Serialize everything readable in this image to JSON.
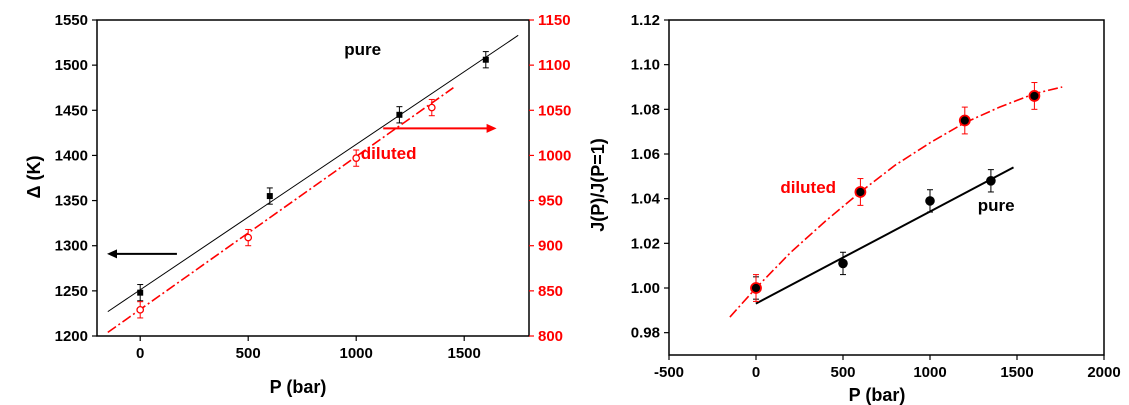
{
  "chart_data": [
    {
      "type": "scatter",
      "xlabel": "P (bar)",
      "ylabel": "Δ (K)",
      "y2label": "",
      "xlim": [
        -200,
        1800
      ],
      "xticks": [
        0,
        500,
        1000,
        1500
      ],
      "ylim": [
        1200,
        1550
      ],
      "yticks": [
        1200,
        1250,
        1300,
        1350,
        1400,
        1450,
        1500,
        1550
      ],
      "y2lim": [
        800,
        1150
      ],
      "y2ticks": [
        800,
        850,
        900,
        950,
        1000,
        1050,
        1100,
        1150
      ],
      "colors": {
        "pure": "#000000",
        "diluted": "#ff0000"
      },
      "series": [
        {
          "name": "pure",
          "axis": "left",
          "marker": "filled-square",
          "x": [
            0,
            600,
            1200,
            1600
          ],
          "y": [
            1248,
            1355,
            1445,
            1506
          ],
          "err": [
            9,
            9,
            9,
            9
          ],
          "fit": {
            "x": [
              -150,
              1750
            ],
            "y": [
              1227,
              1533
            ]
          }
        },
        {
          "name": "diluted",
          "axis": "right",
          "marker": "open-circle",
          "x": [
            0,
            500,
            1000,
            1350
          ],
          "y": [
            829,
            909,
            997,
            1053
          ],
          "err": [
            9,
            9,
            9,
            9
          ],
          "fit": {
            "x": [
              -150,
              1450
            ],
            "y": [
              804,
              1075
            ]
          }
        }
      ],
      "annotations": [
        {
          "text": "pure",
          "x": 1030,
          "y": 1511,
          "color": "#000000"
        },
        {
          "text": "diluted",
          "x": 1150,
          "y": 1396,
          "color": "#ff0000"
        }
      ],
      "arrows": [
        {
          "dir": "left",
          "color": "#000000",
          "x_from": 170,
          "x_to": -250,
          "y": 1291
        },
        {
          "dir": "right",
          "color": "#ff0000",
          "x_from": 1125,
          "x_to": 1650,
          "y": 1030
        }
      ]
    },
    {
      "type": "scatter",
      "xlabel": "P (bar)",
      "ylabel": "J(P)/J(P=1)",
      "xlim": [
        -500,
        2000
      ],
      "xticks": [
        -500,
        0,
        500,
        1000,
        1500,
        2000
      ],
      "ylim": [
        0.97,
        1.12
      ],
      "yticks": [
        0.98,
        1.0,
        1.02,
        1.04,
        1.06,
        1.08,
        1.1,
        1.12
      ],
      "colors": {
        "pure": "#000000",
        "diluted": "#ff0000"
      },
      "series": [
        {
          "name": "pure",
          "marker": "filled-circle",
          "x": [
            0,
            500,
            1000,
            1350
          ],
          "y": [
            1.0,
            1.011,
            1.039,
            1.048
          ],
          "err": [
            0.005,
            0.005,
            0.005,
            0.005
          ],
          "fit": {
            "x": [
              -1,
              1480
            ],
            "y": [
              0.993,
              1.054
            ]
          }
        },
        {
          "name": "diluted",
          "marker": "red-ringed-circle",
          "x": [
            0,
            600,
            1200,
            1600
          ],
          "y": [
            1.0,
            1.043,
            1.075,
            1.086
          ],
          "err": [
            0.006,
            0.006,
            0.006,
            0.006
          ],
          "fit": {
            "x": [
              -150,
              0,
              200,
              400,
              600,
              800,
              1000,
              1200,
              1400,
              1600,
              1760
            ],
            "y": [
              0.987,
              1.0,
              1.016,
              1.03,
              1.043,
              1.055,
              1.065,
              1.074,
              1.081,
              1.087,
              1.09
            ]
          }
        }
      ],
      "annotations": [
        {
          "text": "pure",
          "x": 1380,
          "y": 1.0345,
          "color": "#000000"
        },
        {
          "text": "diluted",
          "x": 300,
          "y": 1.0425,
          "color": "#ff0000"
        }
      ]
    }
  ]
}
